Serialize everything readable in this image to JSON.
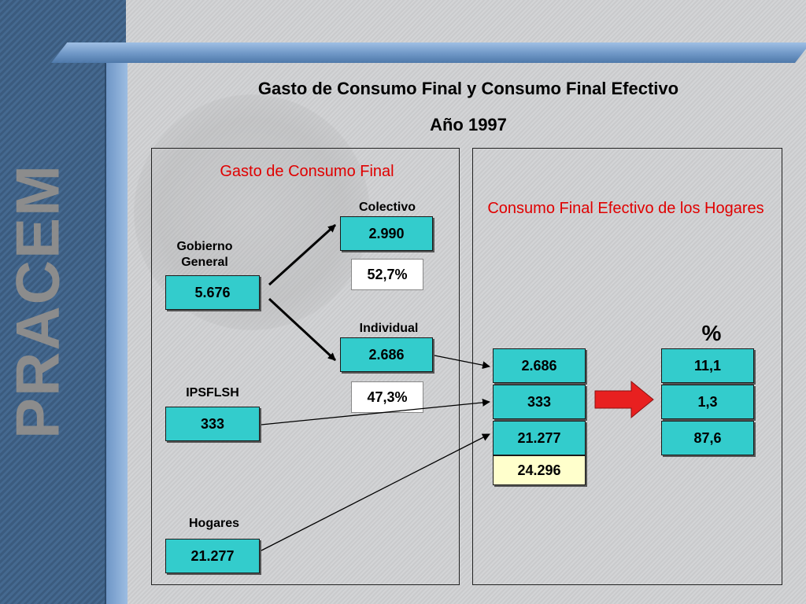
{
  "logo": {
    "text": "PRACEM"
  },
  "title": {
    "line1": "Gasto de Consumo Final y Consumo Final Efectivo",
    "line2": "Año 1997"
  },
  "left_panel": {
    "heading": "Gasto de Consumo Final",
    "gobierno": {
      "label": "Gobierno General",
      "value": "5.676"
    },
    "colectivo": {
      "label": "Colectivo",
      "value": "2.990",
      "share": "52,7%"
    },
    "individual": {
      "label": "Individual",
      "value": "2.686",
      "share": "47,3%"
    },
    "ipsflsh": {
      "label": "IPSFLSH",
      "value": "333"
    },
    "hogares": {
      "label": "Hogares",
      "value": "21.277"
    }
  },
  "right_panel": {
    "heading": "Consumo Final Efectivo de los Hogares",
    "values": [
      "2.686",
      "333",
      "21.277"
    ],
    "total": "24.296",
    "percent_header": "%",
    "percents": [
      "11,1",
      "1,3",
      "87,6"
    ]
  },
  "colors": {
    "box_fill": "#33cccc",
    "total_fill": "#ffffcc",
    "heading_red": "#e00000",
    "arrow_red": "#e82020",
    "sidebar_blue": "#3b5b7e"
  }
}
